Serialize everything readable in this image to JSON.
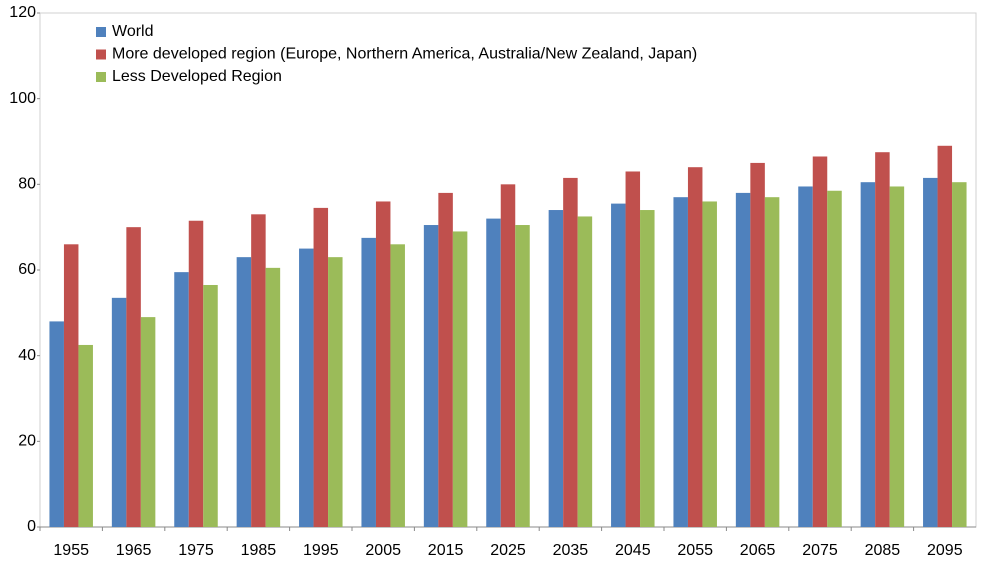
{
  "chart_data": {
    "type": "bar",
    "categories": [
      "1955",
      "1965",
      "1975",
      "1985",
      "1995",
      "2005",
      "2015",
      "2025",
      "2035",
      "2045",
      "2055",
      "2065",
      "2075",
      "2085",
      "2095"
    ],
    "series": [
      {
        "name": "World",
        "color": "#4f81bd",
        "values": [
          48,
          53.5,
          59.5,
          63,
          65,
          67.5,
          70.5,
          72,
          74,
          75.5,
          77,
          78,
          79.5,
          80.5,
          81.5
        ]
      },
      {
        "name": "More developed region (Europe, Northern America, Australia/New Zealand, Japan)",
        "color": "#c0504d",
        "values": [
          66,
          70,
          71.5,
          73,
          74.5,
          76,
          78,
          80,
          81.5,
          83,
          84,
          85,
          86.5,
          87.5,
          89
        ]
      },
      {
        "name": "Less Developed Region",
        "color": "#9bbb59",
        "values": [
          42.5,
          49,
          56.5,
          60.5,
          63,
          66,
          69,
          70.5,
          72.5,
          74,
          76,
          77,
          78.5,
          79.5,
          80.5
        ]
      }
    ],
    "ylim": [
      0,
      120
    ],
    "yticks": [
      0,
      20,
      40,
      60,
      80,
      100,
      120
    ],
    "legend": "top-left"
  }
}
